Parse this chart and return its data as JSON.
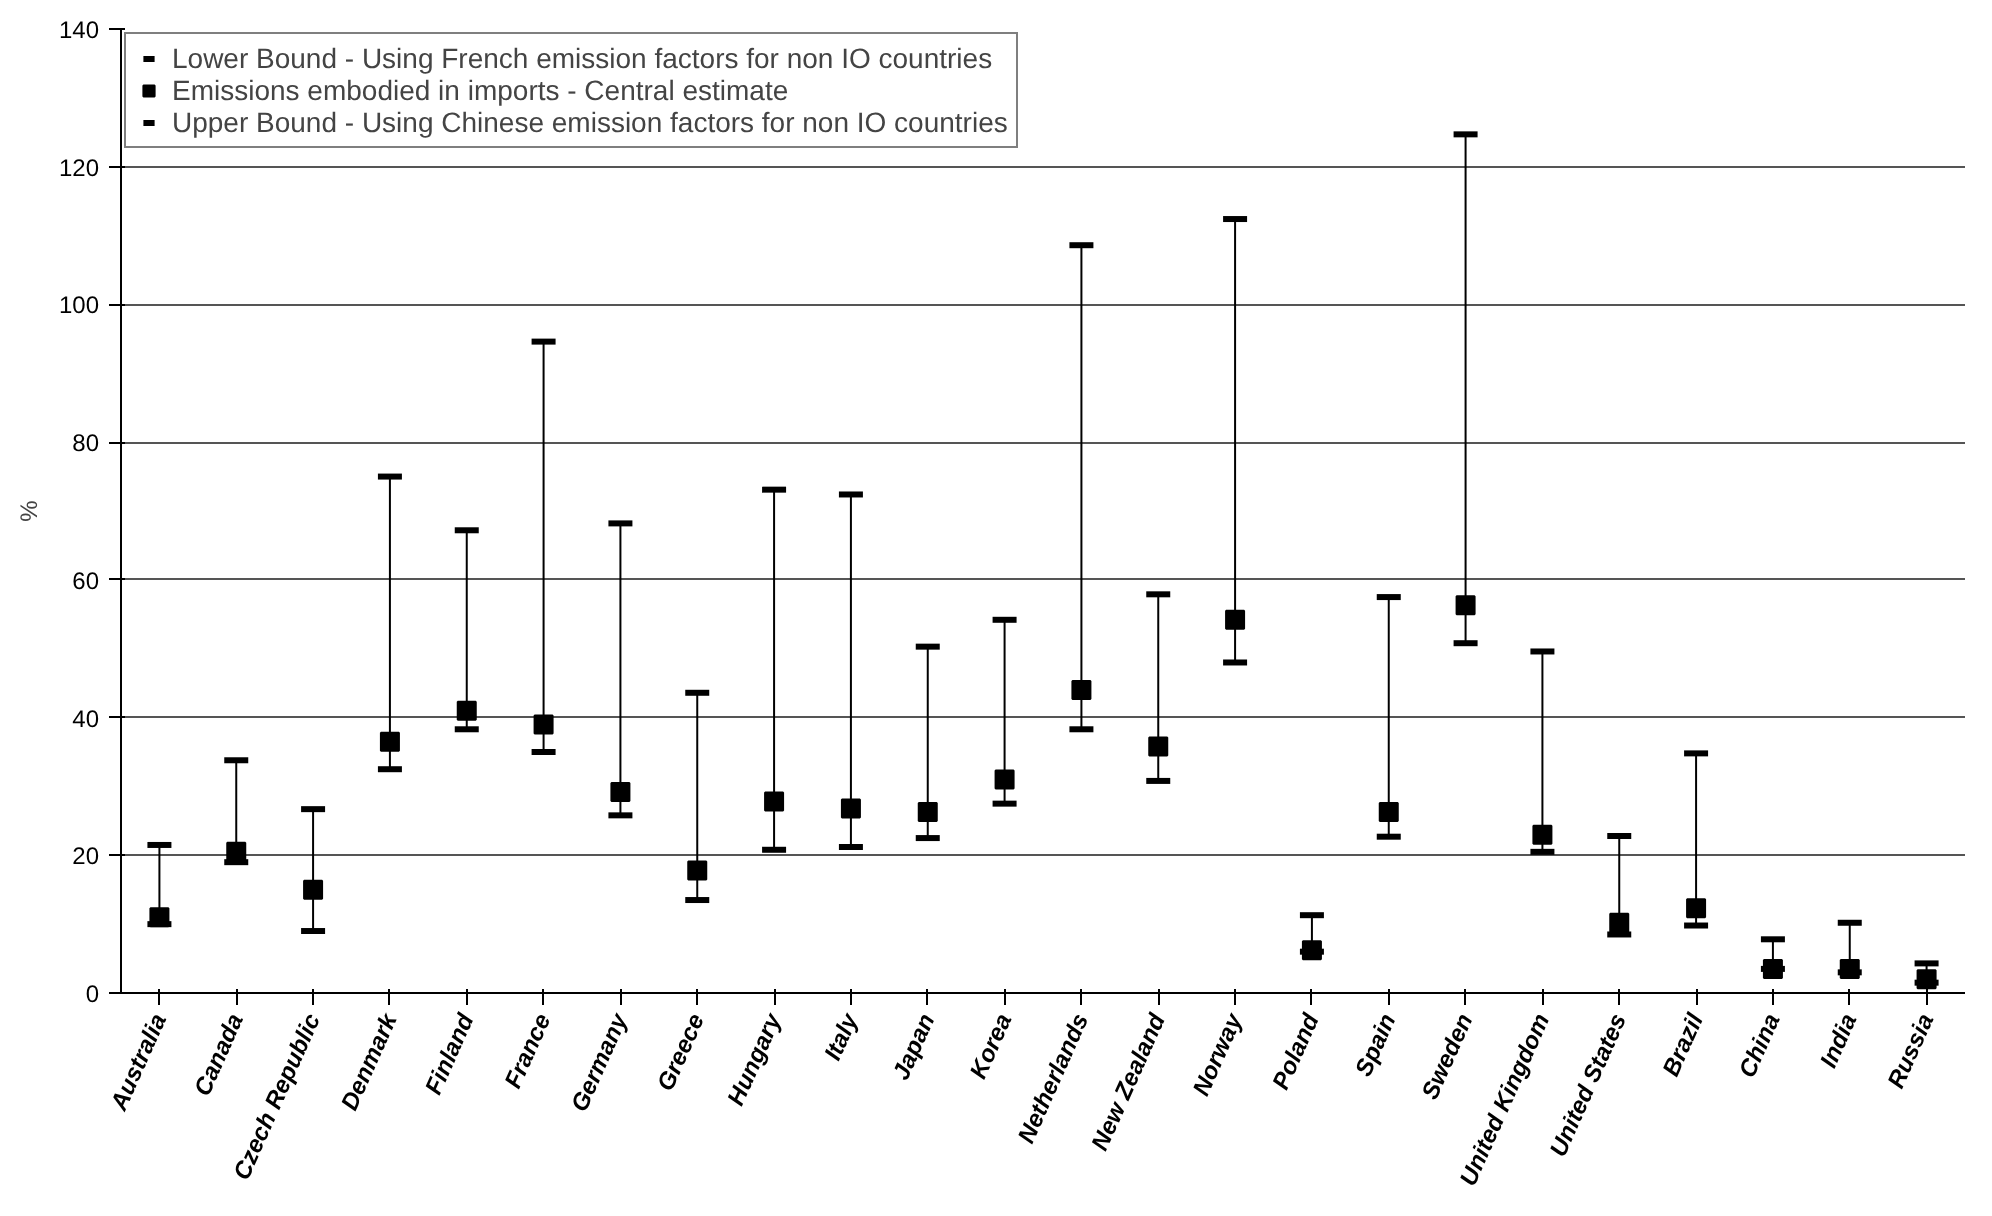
{
  "chart_data": {
    "type": "scatter",
    "ylabel": "%",
    "categories": [
      "Australia",
      "Canada",
      "Czech Republic",
      "Denmark",
      "Finland",
      "France",
      "Germany",
      "Greece",
      "Hungary",
      "Italy",
      "Japan",
      "Korea",
      "Netherlands",
      "New Zealand",
      "Norway",
      "Poland",
      "Spain",
      "Sweden",
      "United Kingdom",
      "United States",
      "Brazil",
      "China",
      "India",
      "Russia"
    ],
    "series": [
      {
        "name": "Lower Bound - Using French emission factors for non IO countries",
        "color": "#000000",
        "values": [
          null,
          null,
          null,
          null,
          null,
          null,
          null,
          null,
          null,
          null,
          null,
          null,
          null,
          null,
          null,
          null,
          null,
          null,
          null,
          null,
          null,
          null,
          null,
          null
        ]
      },
      {
        "name": "Emissions embodied in imports - Central estimate",
        "color": "#000000",
        "marker": "square",
        "values": [
          11,
          20.5,
          15,
          36.5,
          41,
          39,
          29.2,
          17.8,
          27.8,
          26.8,
          26.3,
          31,
          44,
          35.8,
          54.2,
          6.2,
          26.3,
          56.3,
          23,
          10.2,
          12.3,
          3.5,
          3.5,
          2
        ],
        "errors": [
          [
            10,
            21.5
          ],
          [
            19,
            33.8
          ],
          [
            9,
            26.7
          ],
          [
            32.5,
            75
          ],
          [
            38.3,
            67.2
          ],
          [
            35,
            94.6
          ],
          [
            25.8,
            68.2
          ],
          [
            13.5,
            43.6
          ],
          [
            20.8,
            73.1
          ],
          [
            21.2,
            72.4
          ],
          [
            22.5,
            50.3
          ],
          [
            27.5,
            54.2
          ],
          [
            38.3,
            108.6
          ],
          [
            30.8,
            57.9
          ],
          [
            48,
            112.4
          ],
          [
            6,
            11.3
          ],
          [
            22.7,
            57.5
          ],
          [
            50.8,
            124.7
          ],
          [
            20.5,
            49.6
          ],
          [
            8.5,
            22.8
          ],
          [
            9.8,
            34.8
          ],
          [
            3.5,
            7.8
          ],
          [
            3,
            10.2
          ],
          [
            1.5,
            4.3
          ]
        ]
      },
      {
        "name": "Upper Bound - Using Chinese emission factors for non IO countries",
        "color": "#000000",
        "values": [
          null,
          null,
          null,
          null,
          null,
          null,
          null,
          null,
          null,
          null,
          null,
          null,
          null,
          null,
          null,
          null,
          null,
          null,
          null,
          null,
          null,
          null,
          null,
          null
        ]
      }
    ],
    "ylim": [
      0,
      140
    ],
    "yticks": [
      0,
      20,
      40,
      60,
      80,
      100,
      120,
      140
    ],
    "grid": "y",
    "legend": "top left"
  }
}
